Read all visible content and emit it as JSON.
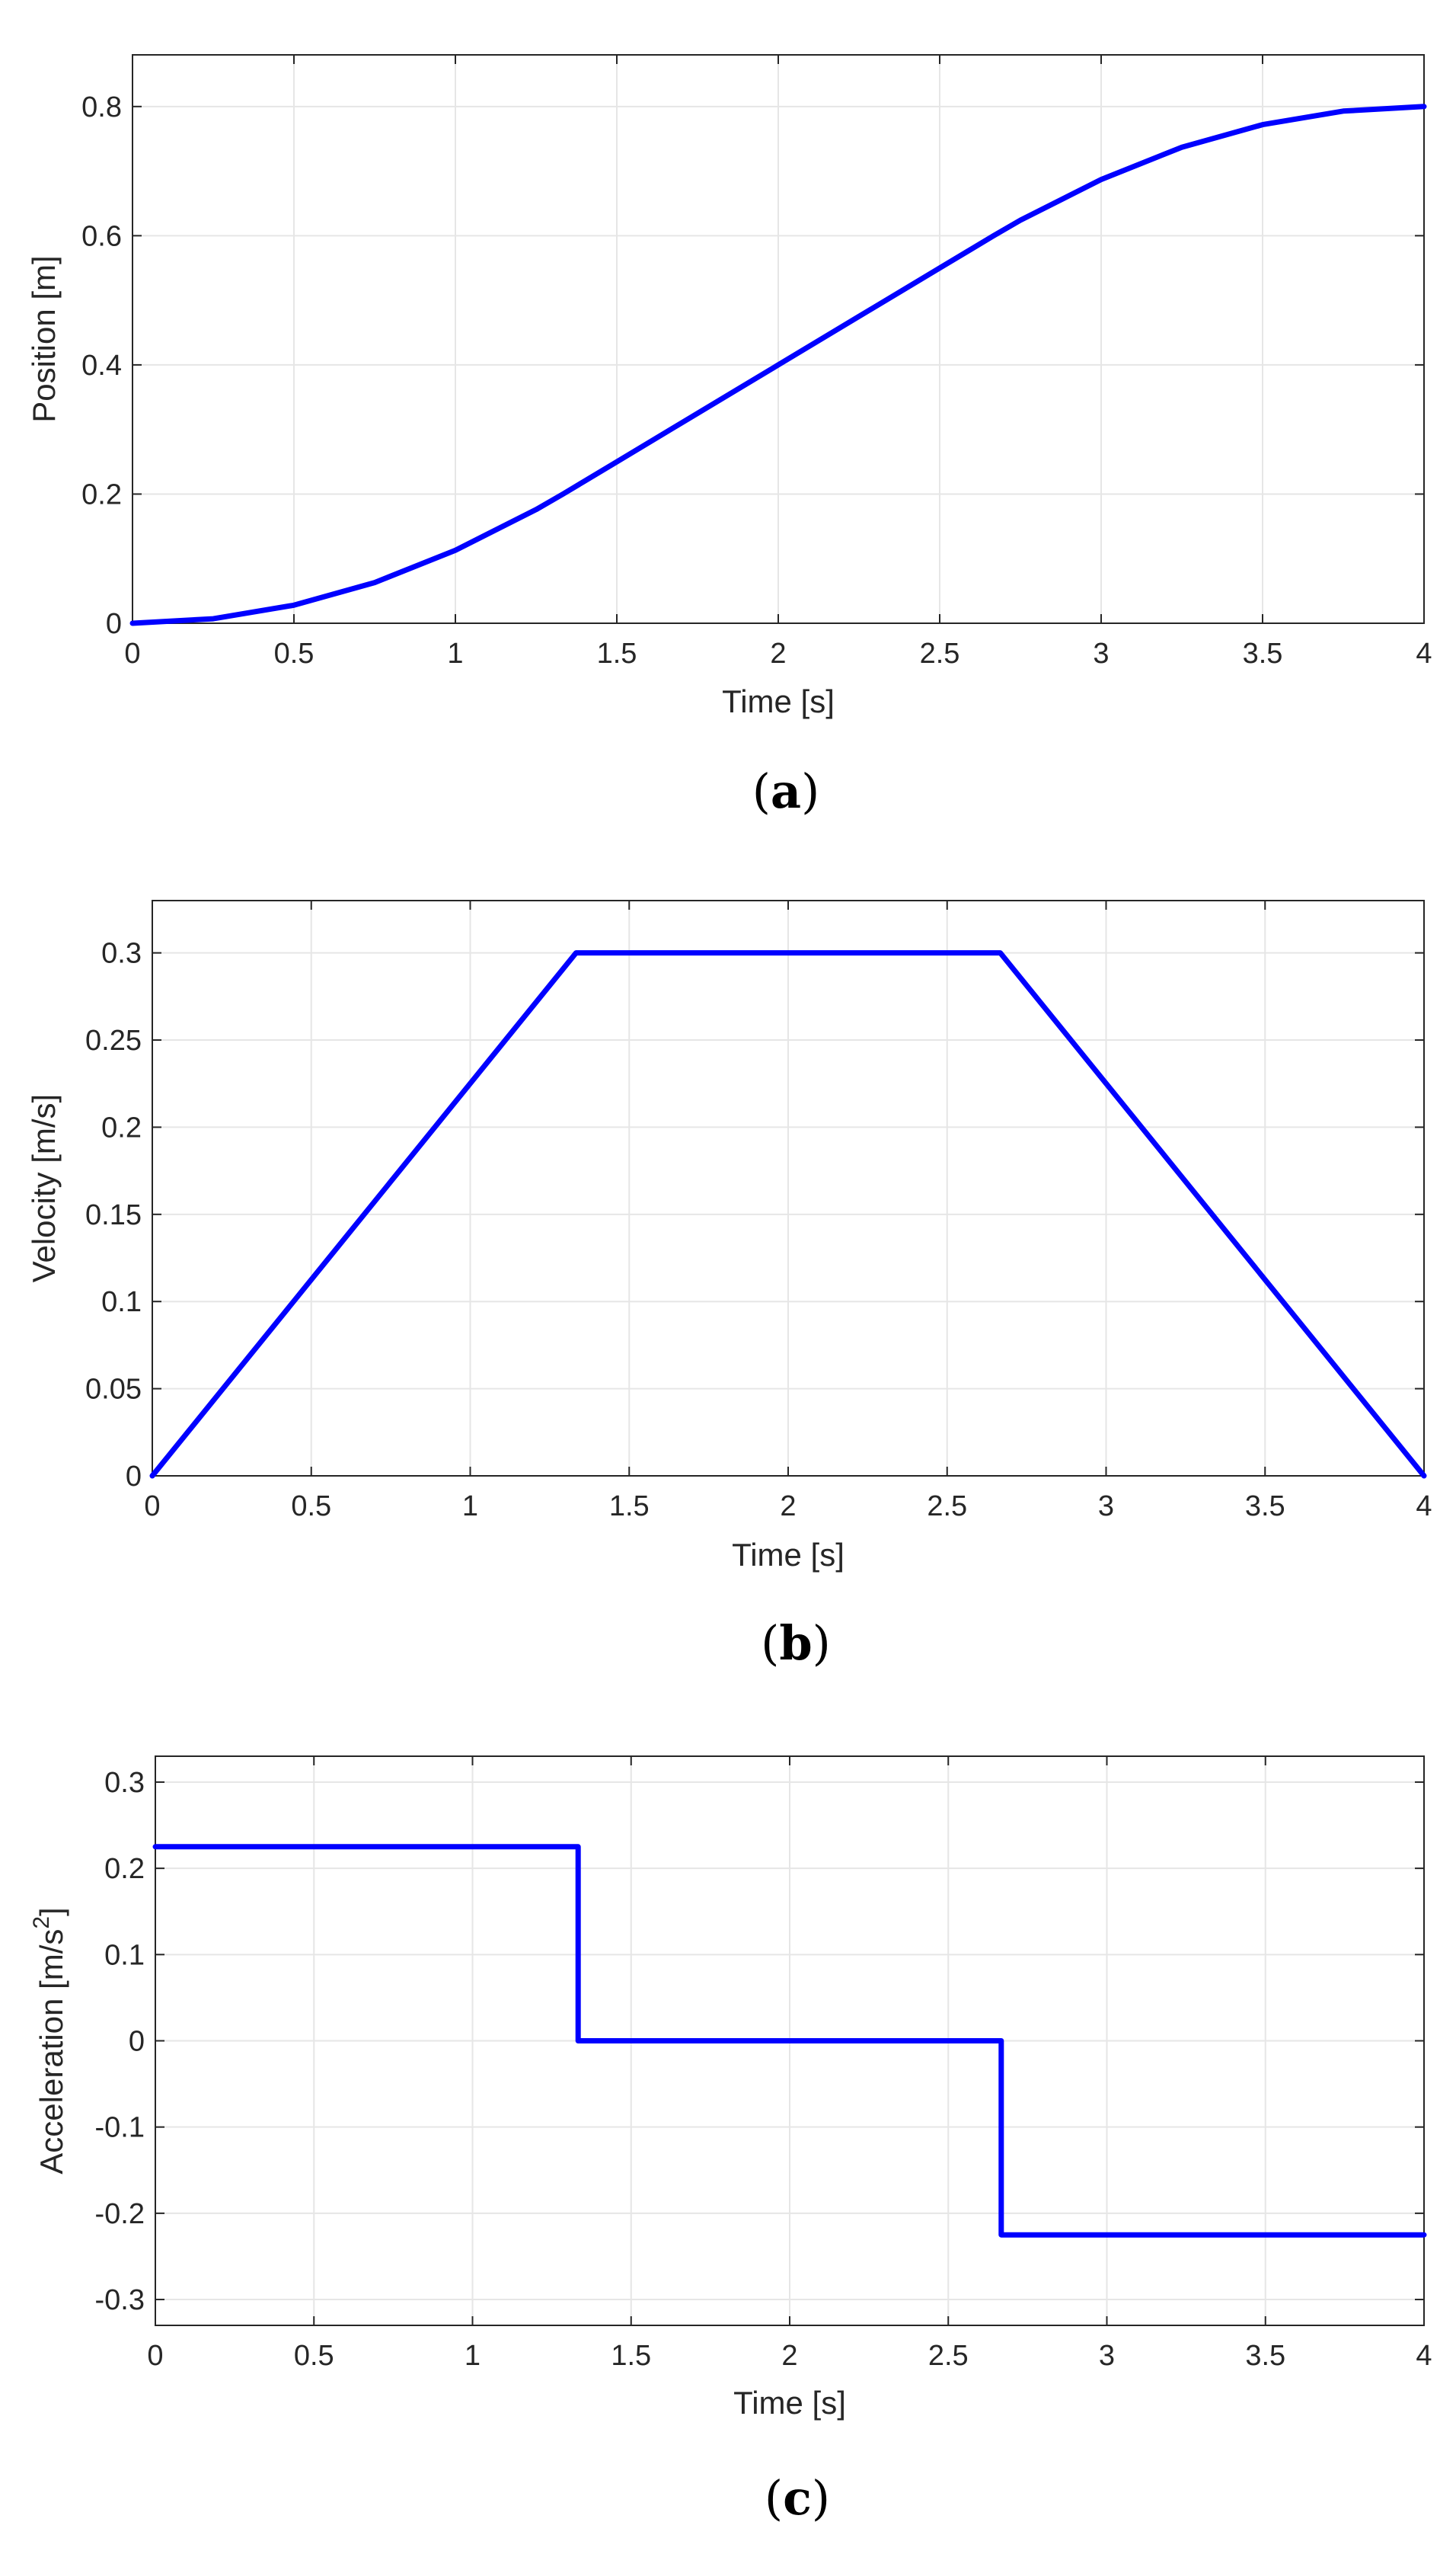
{
  "chart_data": [
    {
      "type": "line",
      "panel": "a",
      "caption_open": "(",
      "caption_letter": "a",
      "caption_close": ")",
      "xlabel": "Time [s]",
      "ylabel": "Position [m]",
      "xlim": [
        0,
        4
      ],
      "ylim": [
        0,
        0.88
      ],
      "x_ticks": [
        0,
        0.5,
        1,
        1.5,
        2,
        2.5,
        3,
        3.5,
        4
      ],
      "x_tick_labels": [
        "0",
        "0.5",
        "1",
        "1.5",
        "2",
        "2.5",
        "3",
        "3.5",
        "4"
      ],
      "y_ticks": [
        0,
        0.2,
        0.4,
        0.6,
        0.8
      ],
      "y_tick_labels": [
        "0",
        "0.2",
        "0.4",
        "0.6",
        "0.8"
      ],
      "grid": true,
      "line_color": "#0000ff",
      "series": [
        {
          "x": [
            0,
            0.25,
            0.5,
            0.75,
            1,
            1.25,
            1.333,
            1.5,
            1.75,
            2,
            2.25,
            2.5,
            2.667,
            2.75,
            3,
            3.25,
            3.5,
            3.75,
            4
          ],
          "y": [
            0,
            0.007,
            0.028,
            0.063,
            0.113,
            0.176,
            0.2,
            0.25,
            0.325,
            0.4,
            0.475,
            0.55,
            0.6,
            0.624,
            0.687,
            0.737,
            0.772,
            0.793,
            0.8
          ]
        }
      ]
    },
    {
      "type": "line",
      "panel": "b",
      "caption_open": "(",
      "caption_letter": "b",
      "caption_close": ")",
      "xlabel": "Time [s]",
      "ylabel": "Velocity [m/s]",
      "xlim": [
        0,
        4
      ],
      "ylim": [
        0,
        0.33
      ],
      "x_ticks": [
        0,
        0.5,
        1,
        1.5,
        2,
        2.5,
        3,
        3.5,
        4
      ],
      "x_tick_labels": [
        "0",
        "0.5",
        "1",
        "1.5",
        "2",
        "2.5",
        "3",
        "3.5",
        "4"
      ],
      "y_ticks": [
        0,
        0.05,
        0.1,
        0.15,
        0.2,
        0.25,
        0.3
      ],
      "y_tick_labels": [
        "0",
        "0.05",
        "0.1",
        "0.15",
        "0.2",
        "0.25",
        "0.3"
      ],
      "grid": true,
      "line_color": "#0000ff",
      "series": [
        {
          "x": [
            0,
            1.333,
            2.667,
            4
          ],
          "y": [
            0,
            0.3,
            0.3,
            0
          ]
        }
      ]
    },
    {
      "type": "line",
      "panel": "c",
      "caption_open": "(",
      "caption_letter": "c",
      "caption_close": ")",
      "xlabel": "Time [s]",
      "ylabel": "Acceleration [m/s",
      "ylabel_superscript": "2",
      "ylabel_suffix": "]",
      "xlim": [
        0,
        4
      ],
      "ylim": [
        -0.33,
        0.33
      ],
      "x_ticks": [
        0,
        0.5,
        1,
        1.5,
        2,
        2.5,
        3,
        3.5,
        4
      ],
      "x_tick_labels": [
        "0",
        "0.5",
        "1",
        "1.5",
        "2",
        "2.5",
        "3",
        "3.5",
        "4"
      ],
      "y_ticks": [
        -0.3,
        -0.2,
        -0.1,
        0,
        0.1,
        0.2,
        0.3
      ],
      "y_tick_labels": [
        "-0.3",
        "-0.2",
        "-0.1",
        "0",
        "0.1",
        "0.2",
        "0.3"
      ],
      "grid": true,
      "line_color": "#0000ff",
      "series": [
        {
          "x": [
            0,
            1.333,
            1.333,
            2.667,
            2.667,
            4
          ],
          "y": [
            0.225,
            0.225,
            0,
            0,
            -0.225,
            -0.225
          ]
        }
      ]
    }
  ]
}
